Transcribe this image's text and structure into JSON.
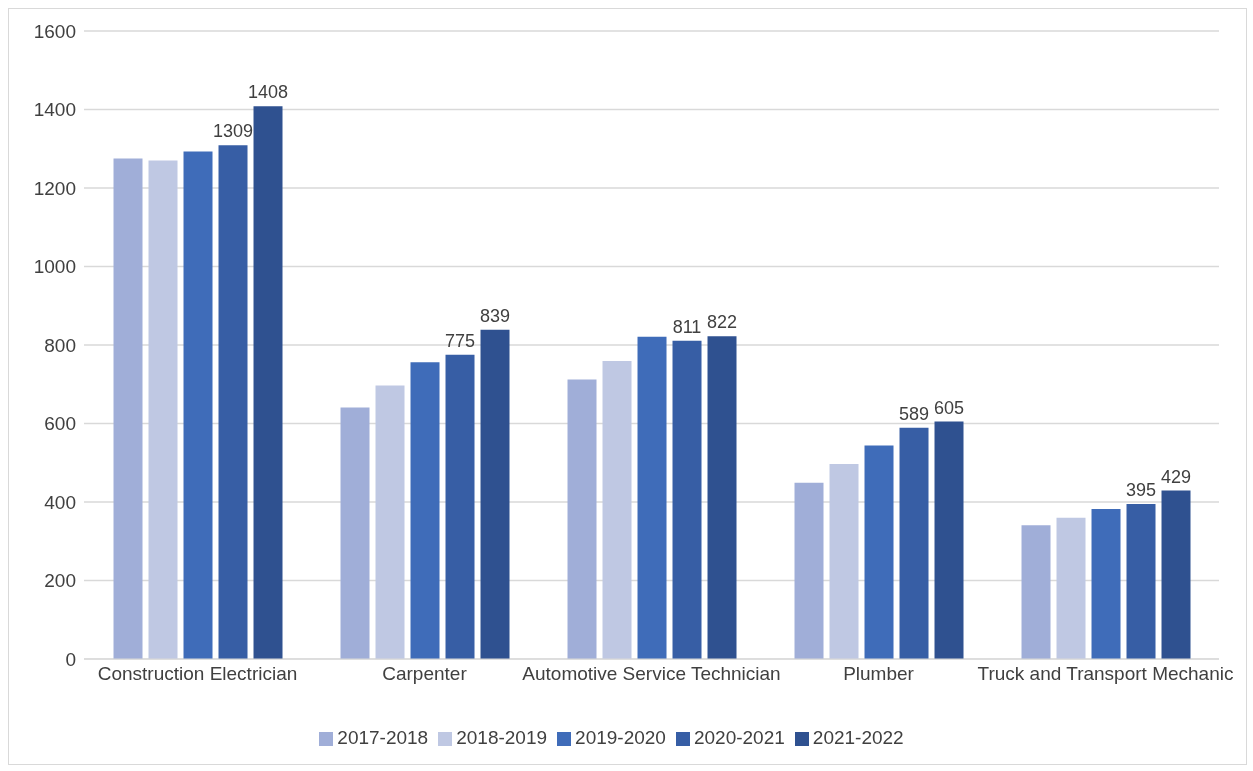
{
  "chart_data": {
    "type": "bar",
    "categories": [
      "Construction Electrician",
      "Carpenter",
      "Automotive Service Technician",
      "Plumber",
      "Truck and Transport Mechanic"
    ],
    "series": [
      {
        "name": "2017-2018",
        "color": "#a0aed8",
        "values": [
          1275,
          641,
          712,
          449,
          341
        ]
      },
      {
        "name": "2018-2019",
        "color": "#bfc8e3",
        "values": [
          1270,
          697,
          759,
          497,
          360
        ]
      },
      {
        "name": "2019-2020",
        "color": "#3f6cb9",
        "values": [
          1293,
          756,
          821,
          544,
          382
        ]
      },
      {
        "name": "2020-2021",
        "color": "#375ea5",
        "values": [
          1309,
          775,
          811,
          589,
          395
        ],
        "value_labels": [
          "1309",
          "775",
          "811",
          "589",
          "395"
        ]
      },
      {
        "name": "2021-2022",
        "color": "#2f5190",
        "values": [
          1408,
          839,
          822,
          605,
          429
        ],
        "value_labels": [
          "1408",
          "839",
          "822",
          "605",
          "429"
        ]
      }
    ],
    "ylim": [
      0,
      1600
    ],
    "yticks": [
      0,
      200,
      400,
      600,
      800,
      1000,
      1200,
      1400,
      1600
    ],
    "grid": "y",
    "legend": "bottom"
  }
}
